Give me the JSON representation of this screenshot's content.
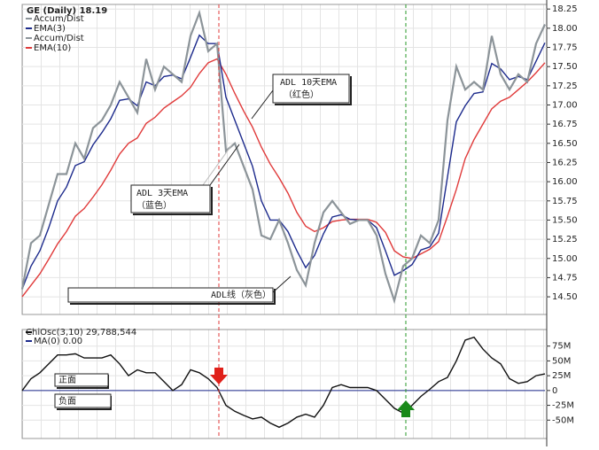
{
  "chart_data": [
    {
      "type": "line",
      "title": "GE (Daily) 18.19",
      "series": [
        {
          "name": "Accum/Dist",
          "color": "#8c9499",
          "values": [
            14.6,
            15.2,
            15.3,
            15.7,
            16.1,
            16.1,
            16.5,
            16.3,
            16.7,
            16.8,
            17.0,
            17.3,
            17.1,
            16.9,
            17.6,
            17.2,
            17.5,
            17.4,
            17.3,
            17.9,
            18.2,
            17.7,
            17.8,
            16.4,
            16.5,
            16.2,
            15.9,
            15.3,
            15.25,
            15.5,
            15.2,
            14.85,
            14.65,
            15.2,
            15.6,
            15.75,
            15.6,
            15.45,
            15.5,
            15.5,
            15.3,
            14.8,
            14.45,
            14.9,
            15.0,
            15.3,
            15.2,
            15.5,
            16.8,
            17.5,
            17.2,
            17.3,
            17.2,
            17.9,
            17.4,
            17.2,
            17.4,
            17.3,
            17.8,
            18.05
          ]
        },
        {
          "name": "EMA(3)",
          "color": "#1c2a8c",
          "values": [
            14.6,
            14.9,
            15.1,
            15.4,
            15.75,
            15.93,
            16.21,
            16.26,
            16.48,
            16.64,
            16.82,
            17.06,
            17.08,
            16.99,
            17.3,
            17.25,
            17.37,
            17.39,
            17.34,
            17.62,
            17.91,
            17.8,
            17.8,
            17.1,
            16.8,
            16.5,
            16.2,
            15.75,
            15.5,
            15.5,
            15.35,
            15.1,
            14.88,
            15.04,
            15.32,
            15.54,
            15.57,
            15.51,
            15.5,
            15.5,
            15.4,
            15.1,
            14.78,
            14.84,
            14.92,
            15.11,
            15.15,
            15.33,
            16.06,
            16.78,
            16.99,
            17.15,
            17.17,
            17.54,
            17.47,
            17.33,
            17.37,
            17.33,
            17.57,
            17.81
          ]
        },
        {
          "name": "EMA(10)",
          "source": "Accum/Dist",
          "color": "#e03a3a",
          "values": [
            14.5,
            14.65,
            14.8,
            14.99,
            15.19,
            15.35,
            15.55,
            15.65,
            15.8,
            15.96,
            16.15,
            16.36,
            16.5,
            16.57,
            16.76,
            16.84,
            16.96,
            17.04,
            17.12,
            17.23,
            17.41,
            17.55,
            17.6,
            17.4,
            17.15,
            16.92,
            16.71,
            16.45,
            16.23,
            16.05,
            15.85,
            15.6,
            15.42,
            15.35,
            15.4,
            15.48,
            15.5,
            15.51,
            15.51,
            15.51,
            15.47,
            15.34,
            15.1,
            15.02,
            15.0,
            15.06,
            15.12,
            15.22,
            15.55,
            15.9,
            16.3,
            16.55,
            16.75,
            16.95,
            17.05,
            17.1,
            17.2,
            17.3,
            17.42,
            17.55
          ]
        }
      ],
      "ylim": [
        14.27,
        18.31
      ],
      "yticks": [
        {
          "value": 14.5,
          "label": "14.50"
        },
        {
          "value": 14.75,
          "label": "14.75"
        },
        {
          "value": 15,
          "label": "15.00"
        },
        {
          "value": 15.25,
          "label": "15.25"
        },
        {
          "value": 15.5,
          "label": "15.50"
        },
        {
          "value": 15.75,
          "label": "15.75"
        },
        {
          "value": 16,
          "label": "16.00"
        },
        {
          "value": 16.25,
          "label": "16.25"
        },
        {
          "value": 16.5,
          "label": "16.50"
        },
        {
          "value": 16.75,
          "label": "16.75"
        },
        {
          "value": 17,
          "label": "17.00"
        },
        {
          "value": 17.25,
          "label": "17.25"
        },
        {
          "value": 17.5,
          "label": "17.50"
        },
        {
          "value": 17.75,
          "label": "17.75"
        },
        {
          "value": 18,
          "label": "18.00"
        },
        {
          "value": 18.25,
          "label": "18.25"
        }
      ],
      "grid": true,
      "annotations": [
        "ADL 10天EMA",
        "（红色）",
        "ADL 3天EMA",
        "（蓝色）",
        "ADL线（灰色）"
      ]
    },
    {
      "type": "line",
      "title": "ChiOsc(3,10) 29,788,544",
      "series": [
        {
          "name": "ChiOsc",
          "color": "#111111",
          "values": [
            0,
            20000000,
            30000000,
            45000000,
            60000000,
            60000000,
            62000000,
            55000000,
            55000000,
            55000000,
            60000000,
            45000000,
            25000000,
            35000000,
            30000000,
            30000000,
            15000000,
            0,
            10000000,
            35000000,
            30000000,
            20000000,
            5000000,
            -25000000,
            -35000000,
            -42000000,
            -48000000,
            -45000000,
            -55000000,
            -62000000,
            -55000000,
            -45000000,
            -40000000,
            -45000000,
            -25000000,
            5000000,
            10000000,
            5000000,
            5000000,
            5000000,
            0,
            -15000000,
            -30000000,
            -38000000,
            -25000000,
            -10000000,
            2000000,
            15000000,
            22000000,
            50000000,
            85000000,
            90000000,
            70000000,
            55000000,
            45000000,
            20000000,
            12000000,
            15000000,
            25000000,
            28000000
          ]
        },
        {
          "name": "MA(0) 0.00",
          "color": "#1c2a8c",
          "values": [
            0,
            0,
            0,
            0,
            0,
            0,
            0,
            0,
            0,
            0,
            0,
            0,
            0,
            0,
            0,
            0,
            0,
            0,
            0,
            0,
            0,
            0,
            0,
            0,
            0,
            0,
            0,
            0,
            0,
            0,
            0,
            0,
            0,
            0,
            0,
            0,
            0,
            0,
            0,
            0,
            0,
            0,
            0,
            0,
            0,
            0,
            0,
            0,
            0,
            0,
            0,
            0,
            0,
            0,
            0,
            0,
            0,
            0,
            0,
            0
          ]
        }
      ],
      "ylim": [
        -81000000,
        103000000
      ],
      "yticks": [
        {
          "value": -50000000,
          "label": "-50M"
        },
        {
          "value": -25000000,
          "label": "-25M"
        },
        0,
        {
          "value": 25000000,
          "label": "25M"
        },
        {
          "value": 50000000,
          "label": "50M"
        },
        {
          "value": 75000000,
          "label": "75M"
        }
      ],
      "grid": true,
      "annotations": [
        "正面",
        "负面"
      ]
    }
  ]
}
